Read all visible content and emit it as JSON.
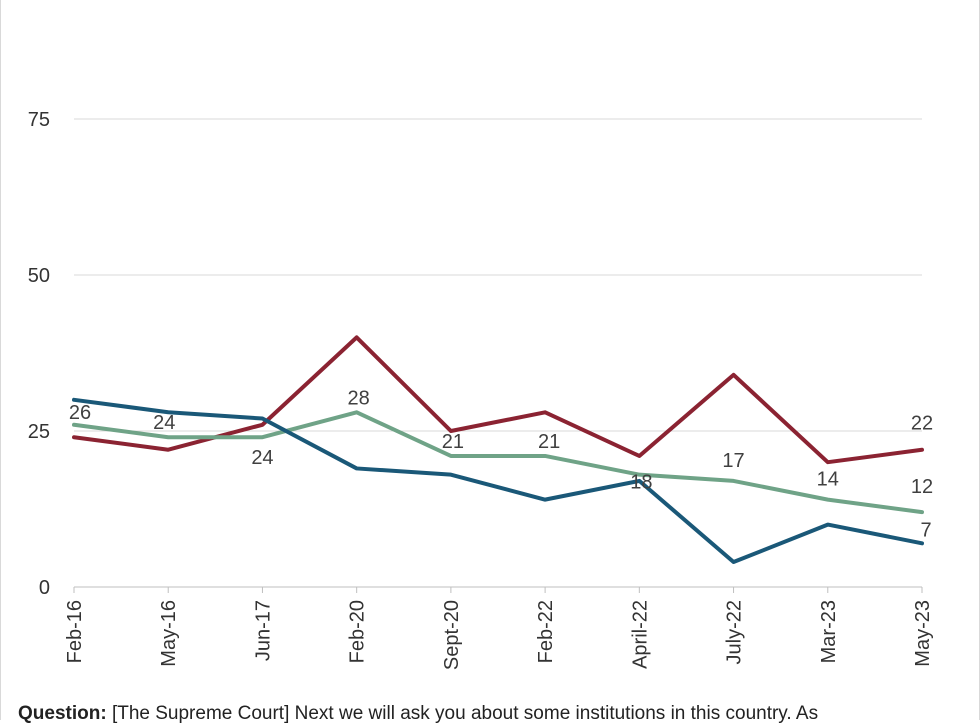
{
  "chart_data": {
    "type": "line",
    "categories": [
      "Feb-16",
      "May-16",
      "Jun-17",
      "Feb-20",
      "Sept-20",
      "Feb-22",
      "April-22",
      "July-22",
      "Mar-23",
      "May-23"
    ],
    "y_ticks": [
      0,
      25,
      50,
      75
    ],
    "ylim": [
      0,
      90
    ],
    "grid": true,
    "series": [
      {
        "color": "#8b2332",
        "values": [
          24,
          22,
          26,
          40,
          25,
          28,
          21,
          34,
          20,
          22
        ],
        "labels": [
          null,
          null,
          null,
          null,
          null,
          null,
          null,
          null,
          null,
          "22"
        ]
      },
      {
        "color": "#6fa387",
        "values": [
          26,
          24,
          24,
          28,
          21,
          21,
          18,
          17,
          14,
          12
        ],
        "labels": [
          "26",
          "24",
          "24",
          "28",
          "21",
          "21",
          "18",
          "17",
          "14",
          "12"
        ]
      },
      {
        "color": "#1a5878",
        "values": [
          30,
          28,
          27,
          19,
          18,
          14,
          17,
          4,
          10,
          7
        ],
        "labels": [
          null,
          null,
          null,
          null,
          null,
          null,
          null,
          null,
          null,
          "7"
        ]
      }
    ]
  },
  "caption": {
    "bold": "Question:",
    "text": " [The Supreme Court] Next we will ask you about some institutions in this country. As"
  }
}
